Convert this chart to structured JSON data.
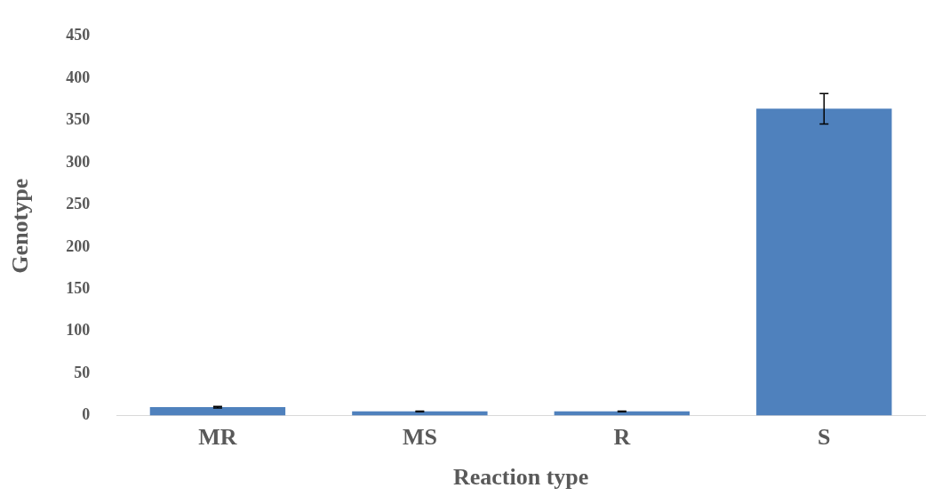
{
  "chart_data": {
    "type": "bar",
    "xlabel": "Reaction type",
    "ylabel": "Genotype",
    "categories": [
      "MR",
      "MS",
      "R",
      "S"
    ],
    "values": [
      10,
      5,
      5,
      364
    ],
    "errors": [
      1,
      0.5,
      0.5,
      18
    ],
    "color": "#4f81bd",
    "ylim": [
      0,
      450
    ],
    "yticks": [
      0,
      50,
      100,
      150,
      200,
      250,
      300,
      350,
      400,
      450
    ],
    "grid": false
  }
}
